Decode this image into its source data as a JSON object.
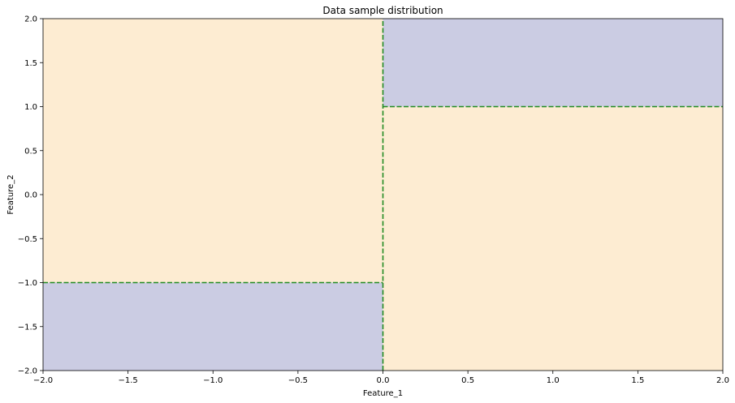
{
  "chart_data": {
    "type": "area",
    "title": "Data sample distribution",
    "xlabel": "Feature_1",
    "ylabel": "Feature_2",
    "xlim": [
      -2.0,
      2.0
    ],
    "ylim": [
      -2.0,
      2.0
    ],
    "xticks": [
      "−2.0",
      "−1.5",
      "−1.0",
      "−0.5",
      "0.0",
      "0.5",
      "1.0",
      "1.5",
      "2.0"
    ],
    "xtick_values": [
      -2.0,
      -1.5,
      -1.0,
      -0.5,
      0.0,
      0.5,
      1.0,
      1.5,
      2.0
    ],
    "yticks": [
      "−2.0",
      "−1.5",
      "−1.0",
      "−0.5",
      "0.0",
      "0.5",
      "1.0",
      "1.5",
      "2.0"
    ],
    "ytick_values": [
      -2.0,
      -1.5,
      -1.0,
      -0.5,
      0.0,
      0.5,
      1.0,
      1.5,
      2.0
    ],
    "grid": false,
    "regions": [
      {
        "class": "background",
        "x": [
          -2.0,
          2.0
        ],
        "y": [
          -2.0,
          2.0
        ],
        "color": "#fdecd2"
      },
      {
        "class": "region",
        "x": [
          -2.0,
          0.0
        ],
        "y": [
          -2.0,
          -1.0
        ],
        "color": "#cbcce3"
      },
      {
        "class": "region",
        "x": [
          0.0,
          2.0
        ],
        "y": [
          1.0,
          2.0
        ],
        "color": "#cbcce3"
      }
    ],
    "boundaries": [
      {
        "x": [
          0.0,
          0.0
        ],
        "y": [
          -2.0,
          2.0
        ]
      },
      {
        "x": [
          -2.0,
          0.0
        ],
        "y": [
          -1.0,
          -1.0
        ]
      },
      {
        "x": [
          0.0,
          2.0
        ],
        "y": [
          1.0,
          1.0
        ]
      }
    ],
    "boundary_color": "#228b22",
    "boundary_style": "dashed"
  }
}
